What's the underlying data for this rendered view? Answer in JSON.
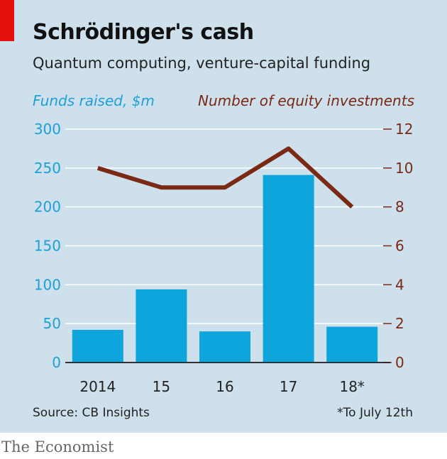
{
  "title": "Schrödinger's cash",
  "subtitle": "Quantum computing, venture-capital funding",
  "source": "Source: CB Insights",
  "footnote": "*To July 12th",
  "brand": "The Economist",
  "colors": {
    "bar": "#0ea5dc",
    "line": "#7b2814",
    "background": "#cde0eb",
    "accent": "#e3120b"
  },
  "chart_data": {
    "type": "bar",
    "categories": [
      "2014",
      "15",
      "16",
      "17",
      "18*"
    ],
    "series": [
      {
        "name": "Funds raised, $m",
        "type": "bar",
        "axis": "left",
        "values": [
          42,
          94,
          40,
          241,
          46
        ]
      },
      {
        "name": "Number of equity investments",
        "type": "line",
        "axis": "right",
        "values": [
          10,
          9,
          9,
          11,
          8
        ]
      }
    ],
    "ylabel_left": "Funds raised, $m",
    "ylabel_right": "Number of equity investments",
    "ylim_left": [
      0,
      300
    ],
    "ylim_right": [
      0,
      12
    ],
    "yticks_left": [
      "0",
      "50",
      "100",
      "150",
      "200",
      "250",
      "300"
    ],
    "yticks_right": [
      "0",
      "2",
      "4",
      "6",
      "8",
      "10",
      "12"
    ],
    "grid": true,
    "legend": "axis-titles"
  }
}
